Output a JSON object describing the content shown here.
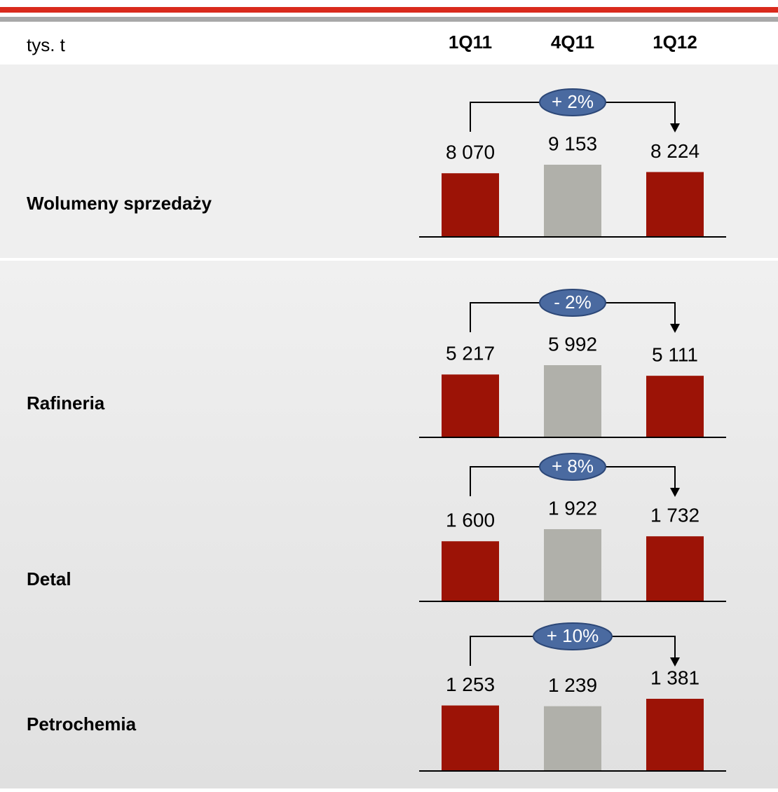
{
  "unit": "tys. t",
  "categories": [
    "1Q11",
    "4Q11",
    "1Q12"
  ],
  "chart_data": [
    {
      "type": "bar",
      "title": "Wolumeny sprzedaży",
      "values": [
        8070,
        9153,
        8224
      ],
      "value_labels": [
        "8 070",
        "9 153",
        "8 224"
      ],
      "change": "+ 2%",
      "colors": [
        "#9c1306",
        "#b0b0aa",
        "#9c1306"
      ]
    },
    {
      "type": "bar",
      "title": "Rafineria",
      "values": [
        5217,
        5992,
        5111
      ],
      "value_labels": [
        "5 217",
        "5 992",
        "5 111"
      ],
      "change": "- 2%",
      "colors": [
        "#9c1306",
        "#b0b0aa",
        "#9c1306"
      ]
    },
    {
      "type": "bar",
      "title": "Detal",
      "values": [
        1600,
        1922,
        1732
      ],
      "value_labels": [
        "1 600",
        "1 922",
        "1 732"
      ],
      "change": "+ 8%",
      "colors": [
        "#9c1306",
        "#b0b0aa",
        "#9c1306"
      ]
    },
    {
      "type": "bar",
      "title": "Petrochemia",
      "values": [
        1253,
        1239,
        1381
      ],
      "value_labels": [
        "1 253",
        "1 239",
        "1 381"
      ],
      "change": "+ 10%",
      "colors": [
        "#9c1306",
        "#b0b0aa",
        "#9c1306"
      ]
    }
  ]
}
